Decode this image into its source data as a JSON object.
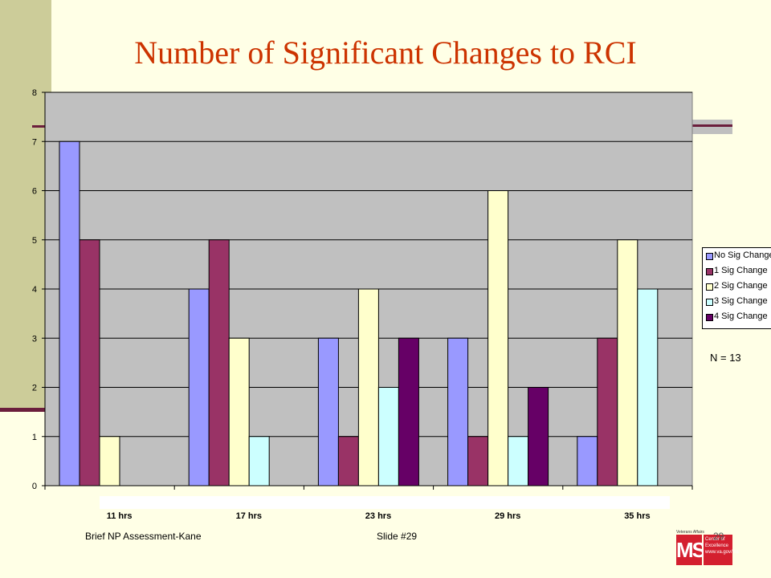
{
  "slide": {
    "title": "Number of Significant Changes to RCI",
    "footer_left": "Brief NP Assessment-Kane",
    "footer_center": "Slide #29",
    "page_number": "29",
    "note": "N = 13"
  },
  "logo": {
    "top_text": "Veterans Affairs",
    "ms": "MS",
    "line1": "Center of",
    "line2": "Excellence",
    "line3": "www.va.gov/ms"
  },
  "colors": {
    "background": "#FFFFE6",
    "title": "#CC3300",
    "plot_area": "#C0C0C0",
    "series": [
      "#9999FF",
      "#993366",
      "#FFFFCC",
      "#CCFFFF",
      "#660066"
    ]
  },
  "chart_data": {
    "type": "bar",
    "categories": [
      "11 hrs",
      "17 hrs",
      "23 hrs",
      "29 hrs",
      "35 hrs"
    ],
    "series": [
      {
        "name": "No Sig Change",
        "values": [
          7,
          4,
          3,
          3,
          1
        ]
      },
      {
        "name": "1 Sig Change",
        "values": [
          5,
          5,
          1,
          1,
          3
        ]
      },
      {
        "name": "2 Sig Change",
        "values": [
          1,
          3,
          4,
          6,
          5
        ]
      },
      {
        "name": "3 Sig Change",
        "values": [
          0,
          1,
          2,
          1,
          4
        ]
      },
      {
        "name": "4 Sig Change",
        "values": [
          0,
          0,
          3,
          2,
          0
        ]
      }
    ],
    "ylim": [
      0,
      8
    ],
    "yticks": [
      0,
      1,
      2,
      3,
      4,
      5,
      6,
      7,
      8
    ],
    "grid": true,
    "legend_position": "right"
  }
}
